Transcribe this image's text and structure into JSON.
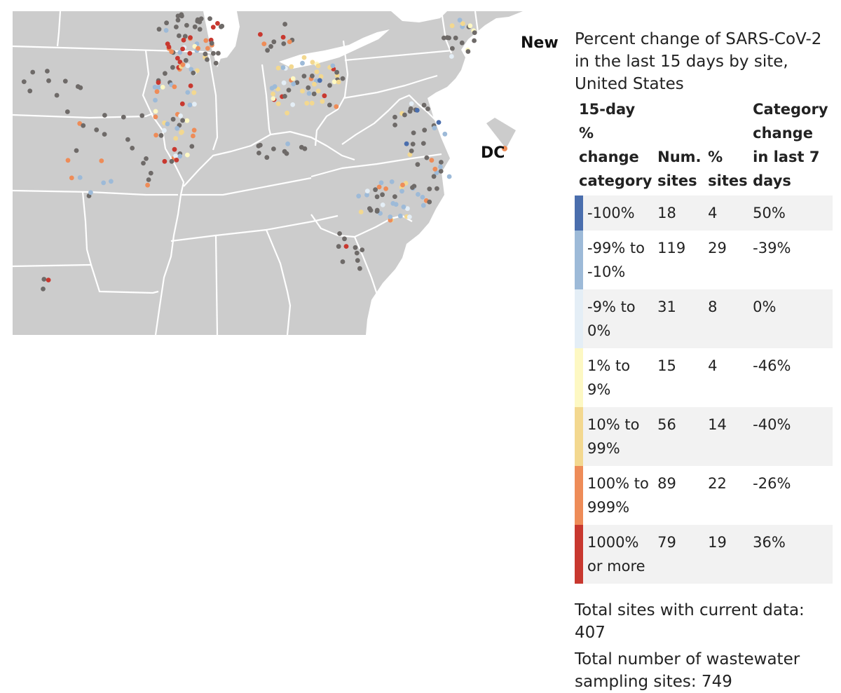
{
  "map": {
    "labels": {
      "new": "New",
      "dc": "DC"
    },
    "colors": {
      "land": "#cccccc",
      "border": "#ffffff",
      "no_data": "#6e6a68",
      "water": "#ffffff"
    }
  },
  "legend": {
    "title": "Percent change of SARS-CoV-2 in the last 15 days by site, United States",
    "headers": {
      "category": "15-day % change category",
      "num_sites": "Num. sites",
      "pct_sites": "% sites",
      "change_7d": "Category change in last 7 days"
    },
    "rows": [
      {
        "category": "-100%",
        "num_sites": "18",
        "pct_sites": "4",
        "change_7d": "50%",
        "color": "#4a6ead"
      },
      {
        "category": "-99% to -10%",
        "num_sites": "119",
        "pct_sites": "29",
        "change_7d": "-39%",
        "color": "#9dbad8"
      },
      {
        "category": "-9% to 0%",
        "num_sites": "31",
        "pct_sites": "8",
        "change_7d": "0%",
        "color": "#e4eef6"
      },
      {
        "category": "1% to 9%",
        "num_sites": "15",
        "pct_sites": "4",
        "change_7d": "-46%",
        "color": "#fdf8c3"
      },
      {
        "category": "10% to 99%",
        "num_sites": "56",
        "pct_sites": "14",
        "change_7d": "-40%",
        "color": "#f3d88f"
      },
      {
        "category": "100% to 999%",
        "num_sites": "89",
        "pct_sites": "22",
        "change_7d": "-26%",
        "color": "#ee8c58"
      },
      {
        "category": "1000% or more",
        "num_sites": "79",
        "pct_sites": "19",
        "change_7d": "36%",
        "color": "#c8382f"
      }
    ]
  },
  "totals": {
    "current": "Total sites with current data: 407",
    "all": "Total number of wastewater sampling sites: 749"
  }
}
